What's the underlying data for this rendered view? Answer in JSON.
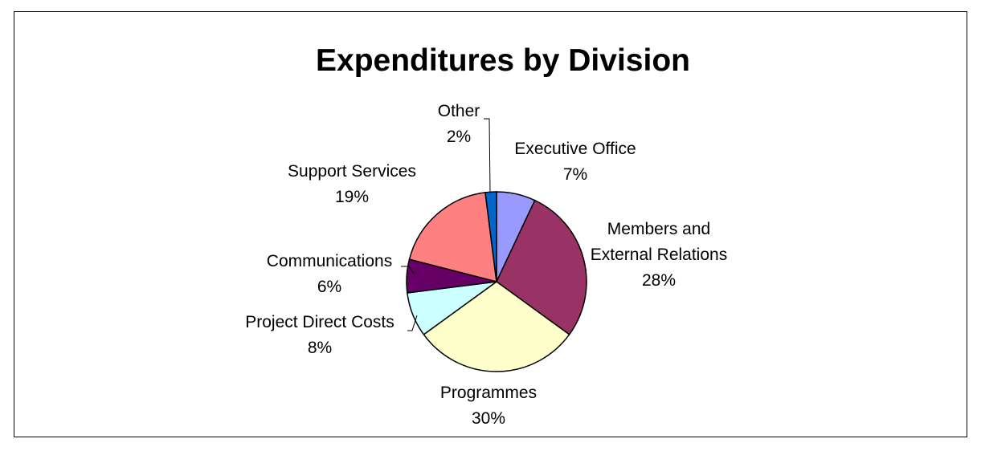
{
  "chart_data": {
    "type": "pie",
    "title": "Expenditures by Division",
    "slices": [
      {
        "label": [
          "Executive Office"
        ],
        "pct_text": "7%",
        "value": 7,
        "color": "#9999ff"
      },
      {
        "label": [
          "Members and",
          "External Relations"
        ],
        "pct_text": "28%",
        "value": 28,
        "color": "#993366"
      },
      {
        "label": [
          "Programmes"
        ],
        "pct_text": "30%",
        "value": 30,
        "color": "#ffffcc"
      },
      {
        "label": [
          "Project Direct Costs"
        ],
        "pct_text": "8%",
        "value": 8,
        "color": "#ccffff"
      },
      {
        "label": [
          "Communications"
        ],
        "pct_text": "6%",
        "value": 6,
        "color": "#660066"
      },
      {
        "label": [
          "Support Services"
        ],
        "pct_text": "19%",
        "value": 19,
        "color": "#ff8080"
      },
      {
        "label": [
          "Other"
        ],
        "pct_text": "2%",
        "value": 2,
        "color": "#0066cc"
      }
    ]
  }
}
